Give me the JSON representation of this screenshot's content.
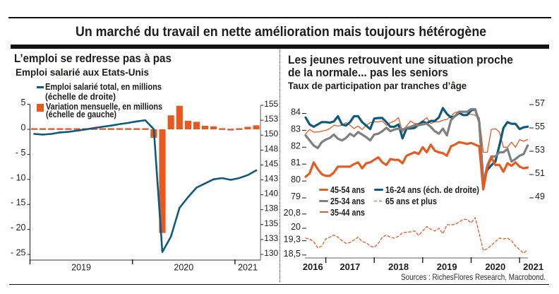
{
  "header": {
    "title": "Un marché du travail en nette amélioration mais toujours hétérogène"
  },
  "colors": {
    "orange": "#e8591f",
    "blue": "#0e5a7e",
    "gray": "#7f7f7f",
    "text": "#1d1d1b"
  },
  "left_panel": {
    "title": "L’emploi se redresse pas à pas",
    "subtitle": "Emploi salarié aux Etats-Unis",
    "legend": [
      {
        "line1": "Emploi salarié total, en millions",
        "line2": "(échelle de droite)",
        "marker": "line",
        "color": "#0e5a7e"
      },
      {
        "line1": "Variation mensuelle, en millions",
        "line2": "(échelle de gauche)",
        "marker": "square",
        "color": "#e8591f"
      }
    ]
  },
  "right_panel": {
    "title_line1": "Les jeunes retrouvent une situation proche",
    "title_line2": "de la normale... pas les seniors",
    "subtitle": "Taux de participation par tranches d’âge",
    "legend": [
      {
        "label": "45-54 ans",
        "marker": "thick-line",
        "color": "#e8591f"
      },
      {
        "label": "16-24 ans (éch. de droite)",
        "marker": "thick-line",
        "color": "#0e5a7e"
      },
      {
        "label": "25-34 ans",
        "marker": "thick-line",
        "color": "#7f7f7f"
      },
      {
        "label": "65 ans et plus",
        "marker": "dashed-line",
        "color": "#e8591f"
      },
      {
        "label": "35-44 ans",
        "marker": "thin-line",
        "color": "#e8591f"
      }
    ],
    "source": "Sources : RichesFlores Research, Macrobond."
  },
  "chart_data": [
    {
      "type": "bar",
      "title": "L’emploi se redresse pas à pas",
      "subtitle": "Emploi salarié aux Etats-Unis",
      "xlabel": "",
      "ylabel": "",
      "x": [
        "2019-01",
        "2019-02",
        "2019-03",
        "2019-04",
        "2019-05",
        "2019-06",
        "2019-07",
        "2019-08",
        "2019-09",
        "2019-10",
        "2019-11",
        "2019-12",
        "2020-01",
        "2020-02",
        "2020-03",
        "2020-04",
        "2020-05",
        "2020-06",
        "2020-07",
        "2020-08",
        "2020-09",
        "2020-10",
        "2020-11",
        "2020-12",
        "2021-01",
        "2021-02",
        "2021-03"
      ],
      "x_tick_labels": [
        "2019",
        "2020",
        "2021"
      ],
      "y_left": {
        "range": [
          -25,
          5
        ],
        "ticks": [
          5,
          0,
          -5,
          -10,
          -15,
          -20,
          -25
        ],
        "tick_labels": [
          "5",
          "0",
          "- 5",
          "- 10",
          "- 15",
          "- 20",
          "- 25"
        ]
      },
      "y_right": {
        "range": [
          130,
          155
        ],
        "ticks": [
          155,
          152.5,
          150,
          147.5,
          145,
          142.5,
          140,
          137.5,
          135,
          132.5,
          130
        ],
        "tick_labels": [
          "155",
          "153",
          "150",
          "148",
          "145",
          "143",
          "140",
          "138",
          "135",
          "133",
          "130"
        ]
      },
      "grid": false,
      "legend": "top-left",
      "series": [
        {
          "name": "Variation mensuelle, en millions (échelle de gauche)",
          "kind": "bar",
          "axis": "left",
          "color": "#e8591f",
          "values": [
            0.27,
            0.05,
            0.15,
            0.22,
            0.08,
            0.18,
            0.16,
            0.2,
            0.18,
            0.13,
            0.26,
            0.18,
            0.21,
            0.25,
            -1.68,
            -20.7,
            2.8,
            4.7,
            1.7,
            1.5,
            0.7,
            0.6,
            0.3,
            -0.3,
            0.25,
            0.5,
            0.8
          ]
        },
        {
          "name": "Emploi salarié total, en millions (échelle de droite)",
          "kind": "line",
          "axis": "right",
          "color": "#0e5a7e",
          "values": [
            150.2,
            150.1,
            150.2,
            150.45,
            150.55,
            150.75,
            150.95,
            151.2,
            151.4,
            151.6,
            151.85,
            152.05,
            152.3,
            152.5,
            151.0,
            130.4,
            133.0,
            137.8,
            139.6,
            141.2,
            141.9,
            142.6,
            142.8,
            142.5,
            142.8,
            143.3,
            144.1
          ]
        }
      ]
    },
    {
      "type": "line",
      "title": "Les jeunes retrouvent une situation proche de la normale... pas les seniors",
      "subtitle": "Taux de participation par tranches d’âge",
      "xlabel": "",
      "ylabel": "",
      "x": [
        "2016-08",
        "2016-09",
        "2016-10",
        "2016-11",
        "2016-12",
        "2017-01",
        "2017-02",
        "2017-03",
        "2017-04",
        "2017-05",
        "2017-06",
        "2017-07",
        "2017-08",
        "2017-09",
        "2017-10",
        "2017-11",
        "2017-12",
        "2018-01",
        "2018-02",
        "2018-03",
        "2018-04",
        "2018-05",
        "2018-06",
        "2018-07",
        "2018-08",
        "2018-09",
        "2018-10",
        "2018-11",
        "2018-12",
        "2019-01",
        "2019-02",
        "2019-03",
        "2019-04",
        "2019-05",
        "2019-06",
        "2019-07",
        "2019-08",
        "2019-09",
        "2019-10",
        "2019-11",
        "2019-12",
        "2020-01",
        "2020-02",
        "2020-03",
        "2020-04",
        "2020-05",
        "2020-06",
        "2020-07",
        "2020-08",
        "2020-09",
        "2020-10",
        "2020-11",
        "2020-12",
        "2021-01",
        "2021-02",
        "2021-03"
      ],
      "x_tick_labels": [
        "2016",
        "2017",
        "2018",
        "2019",
        "2020",
        "2021"
      ],
      "axes": {
        "top-left": {
          "range": [
            79,
            84
          ],
          "ticks": [
            84,
            83,
            82,
            81,
            80,
            79
          ],
          "tick_labels": [
            "84",
            "83",
            "82",
            "81",
            "80",
            "79"
          ]
        },
        "top-right": {
          "range": [
            49,
            57
          ],
          "ticks": [
            57,
            55,
            53,
            51,
            49
          ],
          "tick_labels": [
            "57",
            "55",
            "53",
            "51",
            "49"
          ]
        },
        "bottom-left": {
          "range": [
            18.5,
            20.8
          ],
          "ticks": [
            20.8,
            20,
            19.3,
            18.5
          ],
          "tick_labels": [
            "20,8",
            "20",
            "19,3",
            "18,5"
          ]
        }
      },
      "grid": false,
      "legend": "middle-left",
      "series": [
        {
          "name": "35-44 ans",
          "axis": "top-left",
          "style": "thin-line",
          "color": "#e8591f",
          "values": [
            82.8,
            83.05,
            82.9,
            82.9,
            82.95,
            83.0,
            83.1,
            83.3,
            83.25,
            83.3,
            83.45,
            83.3,
            83.1,
            83.25,
            83.05,
            83.3,
            83.45,
            83.5,
            83.5,
            83.55,
            83.3,
            83.45,
            83.55,
            83.75,
            82.9,
            83.25,
            83.55,
            83.4,
            83.4,
            83.55,
            83.75,
            83.4,
            83.5,
            83.5,
            83.6,
            83.65,
            83.85,
            84.05,
            84.1,
            83.9,
            83.95,
            83.95,
            83.9,
            83.75,
            81.7,
            81.7,
            83.05,
            83.1,
            82.9,
            82.0,
            82.0,
            82.3,
            82.0,
            82.45,
            82.35,
            82.45
          ]
        },
        {
          "name": "16-24 ans (éch. de droite)",
          "axis": "top-right",
          "style": "thick-line",
          "color": "#0e5a7e",
          "values": [
            55.9,
            55.3,
            55.1,
            55.3,
            55.5,
            55.5,
            55.45,
            55.55,
            56.0,
            55.3,
            55.2,
            55.5,
            56.0,
            56.0,
            55.5,
            55.2,
            54.9,
            55.8,
            55.85,
            55.85,
            55.5,
            55.1,
            55.1,
            55.3,
            54.1,
            54.95,
            54.95,
            55.0,
            55.3,
            55.55,
            55.4,
            55.6,
            55.6,
            55.9,
            56.7,
            56.2,
            55.9,
            56.0,
            56.3,
            56.1,
            56.1,
            56.5,
            56.6,
            55.5,
            50.4,
            51.4,
            51.8,
            52.1,
            53.5,
            55.0,
            55.5,
            55.35,
            55.35,
            54.9,
            55.05,
            55.1
          ]
        },
        {
          "name": "25-34 ans",
          "axis": "top-left",
          "style": "thick-line",
          "color": "#7f7f7f",
          "values": [
            82.7,
            82.4,
            82.1,
            81.95,
            82.3,
            82.45,
            82.55,
            82.75,
            82.5,
            82.4,
            82.55,
            82.8,
            82.65,
            82.9,
            82.75,
            82.6,
            82.4,
            82.75,
            82.8,
            82.95,
            83.15,
            82.95,
            83.05,
            83.1,
            83.05,
            83.15,
            83.2,
            83.3,
            83.3,
            83.35,
            83.4,
            83.2,
            82.95,
            82.8,
            83.1,
            82.7,
            83.6,
            83.85,
            84.1,
            84.1,
            84.1,
            84.25,
            84.25,
            83.5,
            79.85,
            80.9,
            81.45,
            81.45,
            81.7,
            81.7,
            81.9,
            81.15,
            81.3,
            81.5,
            81.6,
            82.1
          ]
        },
        {
          "name": "45-54 ans",
          "axis": "top-left",
          "style": "thick-line",
          "color": "#e8591f",
          "values": [
            80.25,
            80.45,
            81.1,
            80.7,
            80.4,
            80.3,
            80.3,
            80.5,
            80.85,
            80.85,
            80.85,
            80.85,
            81.0,
            81.1,
            80.75,
            81.05,
            81.1,
            81.25,
            81.4,
            81.1,
            80.95,
            81.3,
            81.25,
            81.25,
            81.05,
            81.5,
            81.6,
            81.7,
            81.6,
            82.0,
            81.7,
            82.15,
            81.8,
            81.7,
            81.65,
            81.5,
            82.05,
            82.15,
            82.3,
            82.25,
            82.2,
            82.25,
            82.15,
            82.05,
            79.5,
            80.8,
            81.4,
            80.95,
            80.95,
            80.55,
            81.05,
            80.9,
            81.1,
            80.85,
            80.75,
            80.8
          ]
        },
        {
          "name": "65 ans et plus",
          "axis": "bottom-left",
          "style": "dashed-line",
          "color": "#e8591f",
          "values": [
            19.45,
            19.4,
            19.25,
            18.9,
            19.0,
            19.4,
            19.5,
            19.62,
            19.5,
            19.3,
            19.15,
            19.2,
            19.35,
            19.5,
            19.25,
            19.2,
            19.0,
            18.93,
            19.15,
            19.5,
            19.62,
            19.5,
            19.45,
            19.55,
            19.75,
            19.78,
            19.8,
            19.85,
            19.6,
            19.85,
            20.1,
            19.95,
            19.85,
            20.0,
            19.7,
            20.2,
            20.2,
            20.22,
            20.35,
            20.5,
            20.5,
            20.3,
            20.6,
            19.7,
            18.75,
            18.85,
            19.05,
            19.25,
            19.45,
            19.4,
            19.45,
            19.3,
            19.0,
            18.8,
            18.6,
            18.8
          ]
        }
      ]
    }
  ]
}
